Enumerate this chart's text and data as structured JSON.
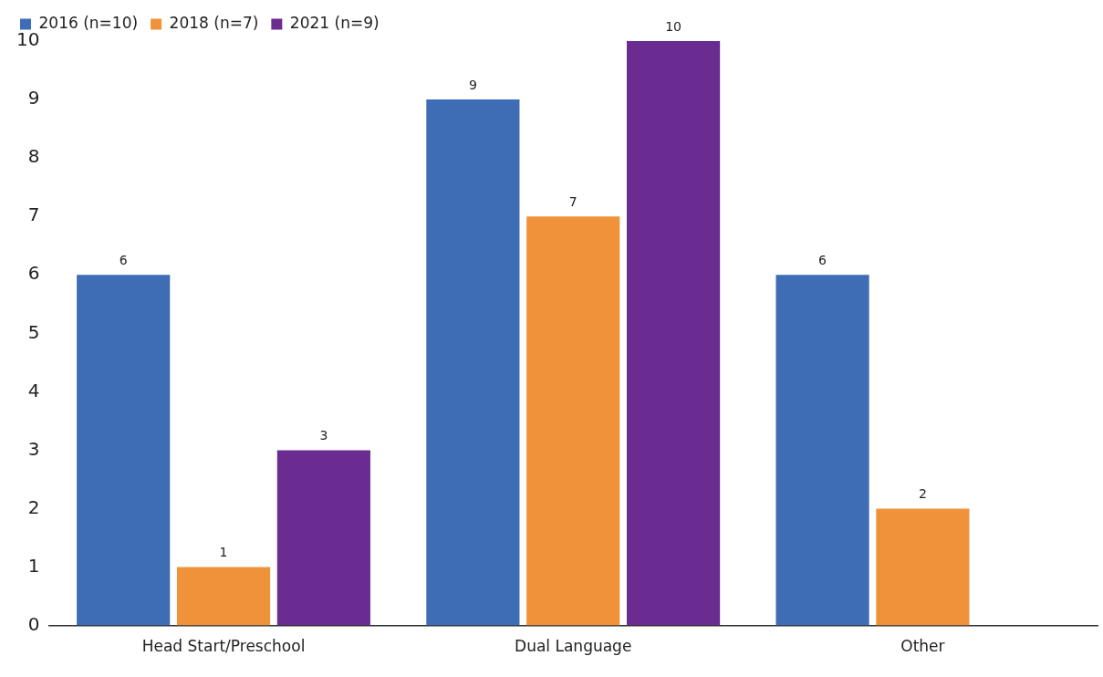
{
  "chart_data": {
    "type": "bar",
    "categories": [
      "Head Start/Preschool",
      "Dual Language",
      "Other"
    ],
    "series": [
      {
        "name": "2016 (n=10)",
        "color": "#3e6db5",
        "values": [
          6,
          9,
          6
        ]
      },
      {
        "name": "2018 (n=7)",
        "color": "#f0923a",
        "values": [
          1,
          7,
          2
        ]
      },
      {
        "name": "2021 (n=9)",
        "color": "#6a2c91",
        "values": [
          3,
          10,
          null
        ]
      }
    ],
    "ylim": [
      0,
      10
    ],
    "yticks": [
      0,
      1,
      2,
      3,
      4,
      5,
      6,
      7,
      8,
      9,
      10
    ],
    "grid": false,
    "legend": "top left",
    "data_labels": true
  }
}
